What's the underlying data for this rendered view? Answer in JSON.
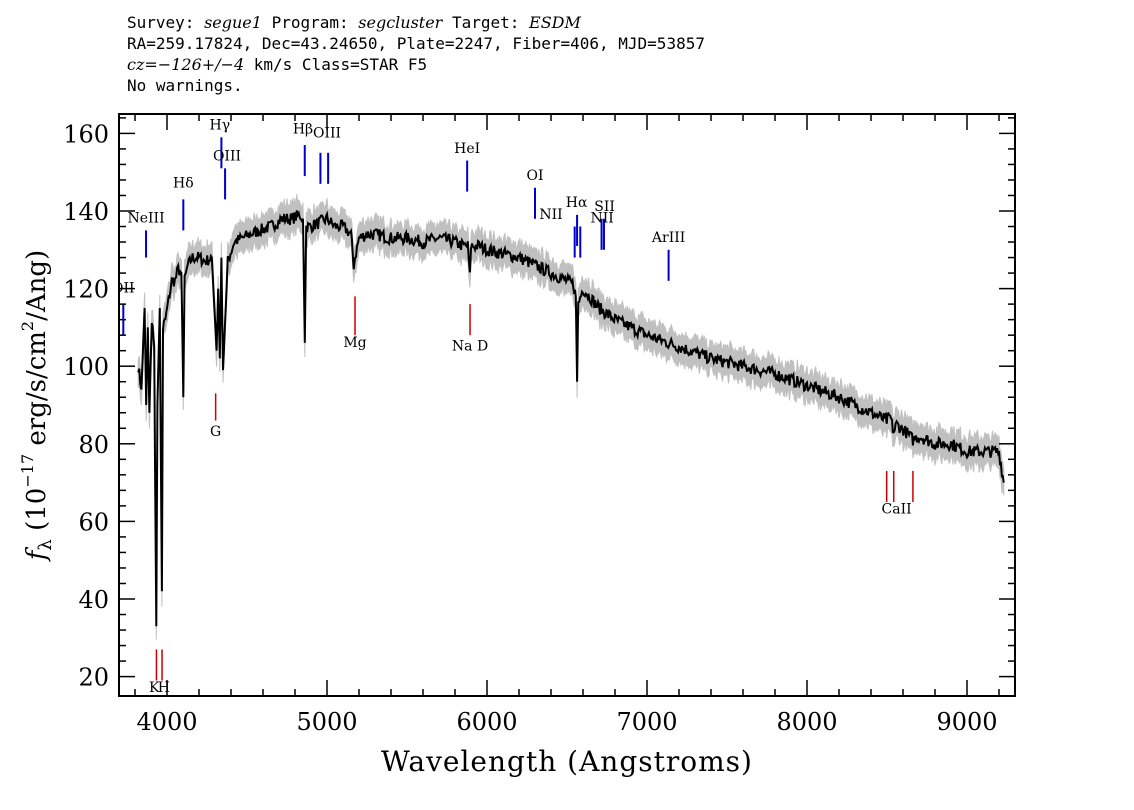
{
  "header": {
    "line1": [
      {
        "text": "Survey: ",
        "italic": false
      },
      {
        "text": "segue1",
        "italic": true
      },
      {
        "text": " Program: ",
        "italic": false
      },
      {
        "text": "segcluster",
        "italic": true
      },
      {
        "text": " Target: ",
        "italic": false
      },
      {
        "text": "ESDM",
        "italic": true
      }
    ],
    "line2": "RA=259.17824, Dec=43.24650, Plate=2247, Fiber=406, MJD=53857",
    "line3": [
      {
        "text": "cz=",
        "italic": true
      },
      {
        "text": "−126+/−4",
        "italic": true
      },
      {
        "text": " km/s Class=STAR F5",
        "italic": false
      }
    ],
    "line4": "No warnings."
  },
  "chart_data": {
    "type": "line",
    "xlabel": "Wavelength (Angstroms)",
    "ylabel": "f_λ (10^-17 erg/s/cm^2/Ang)",
    "xlim": [
      3700,
      9300
    ],
    "ylim": [
      15,
      165
    ],
    "x_ticks": [
      4000,
      5000,
      6000,
      7000,
      8000,
      9000
    ],
    "y_ticks": [
      20,
      40,
      60,
      80,
      100,
      120,
      140,
      160
    ],
    "grid": false,
    "colors": {
      "flux": "#000000",
      "error_band": "#c0c0c0",
      "emission_line": "#0000cc",
      "absorption_line": "#cc0000"
    },
    "series": [
      {
        "role": "flux",
        "x": [
          3820,
          3840,
          3860,
          3870,
          3880,
          3890,
          3905,
          3920,
          3933,
          3940,
          3955,
          3968,
          3975,
          3990,
          4010,
          4030,
          4050,
          4070,
          4090,
          4102,
          4110,
          4130,
          4160,
          4200,
          4240,
          4280,
          4310,
          4320,
          4330,
          4340,
          4350,
          4380,
          4420,
          4470,
          4520,
          4580,
          4650,
          4720,
          4780,
          4830,
          4850,
          4861,
          4870,
          4900,
          4950,
          5000,
          5050,
          5100,
          5150,
          5167,
          5175,
          5200,
          5250,
          5300,
          5400,
          5500,
          5600,
          5700,
          5800,
          5850,
          5880,
          5893,
          5900,
          5950,
          6000,
          6100,
          6200,
          6300,
          6400,
          6500,
          6540,
          6555,
          6563,
          6570,
          6600,
          6700,
          6800,
          6900,
          7000,
          7200,
          7400,
          7600,
          7800,
          8000,
          8200,
          8400,
          8498,
          8520,
          8542,
          8560,
          8620,
          8662,
          8700,
          8800,
          8900,
          9000,
          9100,
          9200,
          9230
        ],
        "y": [
          100,
          94,
          115,
          90,
          110,
          88,
          112,
          105,
          33,
          90,
          115,
          42,
          110,
          112,
          117,
          122,
          122,
          125,
          124,
          92,
          122,
          126,
          128,
          128,
          127,
          128,
          104,
          120,
          102,
          128,
          99,
          127,
          132,
          133,
          134,
          135,
          136,
          138,
          138,
          139,
          138,
          106,
          136,
          136,
          137,
          138,
          136,
          136,
          134,
          126,
          128,
          133,
          134,
          134,
          133,
          133,
          132,
          133,
          132,
          131,
          131,
          123,
          131,
          131,
          130,
          129,
          128,
          126,
          124,
          122,
          121,
          118,
          96,
          116,
          120,
          115,
          112,
          110,
          108,
          105,
          102,
          100,
          98,
          95,
          92,
          88,
          86,
          87,
          83,
          85,
          83,
          81,
          82,
          80,
          80,
          78,
          78,
          78,
          70
        ]
      }
    ],
    "line_markers": {
      "emission": [
        {
          "label": "OII",
          "wavelength": 3727,
          "ymin": 108,
          "ymax": 116
        },
        {
          "label": "NeIII",
          "wavelength": 3869,
          "ymin": 128,
          "ymax": 135
        },
        {
          "label": "Hδ",
          "wavelength": 4102,
          "ymin": 135,
          "ymax": 143
        },
        {
          "label": "Hγ",
          "wavelength": 4340,
          "ymin": 151,
          "ymax": 159
        },
        {
          "label": "OIII",
          "wavelength": 4363,
          "ymin": 143,
          "ymax": 151
        },
        {
          "label": "Hβ",
          "wavelength": 4861,
          "ymin": 149,
          "ymax": 157
        },
        {
          "label": "OIII",
          "wavelength": 4959,
          "ymin": 147,
          "ymax": 155
        },
        {
          "label": "OIII",
          "wavelength": 5007,
          "ymin": 147,
          "ymax": 155
        },
        {
          "label": "HeI",
          "wavelength": 5876,
          "ymin": 145,
          "ymax": 153
        },
        {
          "label": "OI",
          "wavelength": 6300,
          "ymin": 138,
          "ymax": 146
        },
        {
          "label": "NII",
          "wavelength": 6548,
          "ymin": 128,
          "ymax": 136
        },
        {
          "label": "Hα",
          "wavelength": 6563,
          "ymin": 131,
          "ymax": 139
        },
        {
          "label": "NII",
          "wavelength": 6583,
          "ymin": 128,
          "ymax": 136
        },
        {
          "label": "SII",
          "wavelength": 6716,
          "ymin": 130,
          "ymax": 138
        },
        {
          "label": "SII",
          "wavelength": 6731,
          "ymin": 130,
          "ymax": 138
        },
        {
          "label": "ArIII",
          "wavelength": 7135,
          "ymin": 122,
          "ymax": 130
        }
      ],
      "absorption": [
        {
          "label": "K",
          "wavelength": 3934,
          "ymin": 19,
          "ymax": 27
        },
        {
          "label": "H",
          "wavelength": 3969,
          "ymin": 19,
          "ymax": 27
        },
        {
          "label": "G",
          "wavelength": 4304,
          "ymin": 86,
          "ymax": 93
        },
        {
          "label": "Mg",
          "wavelength": 5175,
          "ymin": 108,
          "ymax": 118
        },
        {
          "label": "Na D",
          "wavelength": 5894,
          "ymin": 108,
          "ymax": 116
        },
        {
          "label": "CaII",
          "wavelength": 8498,
          "ymin": 65,
          "ymax": 73
        },
        {
          "label": "CaII",
          "wavelength": 8542,
          "ymin": 65,
          "ymax": 73
        },
        {
          "label": "CaII",
          "wavelength": 8662,
          "ymin": 65,
          "ymax": 73
        }
      ],
      "labels": [
        {
          "text": "OII",
          "kind": "emission",
          "wavelength": 3727,
          "y": 119
        },
        {
          "text": "NeIII",
          "kind": "emission",
          "wavelength": 3869,
          "y": 137
        },
        {
          "text": "Hδ",
          "kind": "emission",
          "wavelength": 4102,
          "y": 146
        },
        {
          "text": "Hγ",
          "kind": "emission",
          "wavelength": 4330,
          "y": 161
        },
        {
          "text": "OIII",
          "kind": "emission",
          "wavelength": 4375,
          "y": 153
        },
        {
          "text": "Hβ",
          "kind": "emission",
          "wavelength": 4850,
          "y": 160
        },
        {
          "text": "OIII",
          "kind": "emission",
          "wavelength": 5000,
          "y": 159
        },
        {
          "text": "HeI",
          "kind": "emission",
          "wavelength": 5876,
          "y": 155
        },
        {
          "text": "OI",
          "kind": "emission",
          "wavelength": 6300,
          "y": 148
        },
        {
          "text": "NII",
          "kind": "emission",
          "wavelength": 6400,
          "y": 138
        },
        {
          "text": "Hα",
          "kind": "emission",
          "wavelength": 6560,
          "y": 141
        },
        {
          "text": "SII",
          "kind": "emission",
          "wavelength": 6735,
          "y": 140
        },
        {
          "text": "NII",
          "kind": "emission",
          "wavelength": 6720,
          "y": 137
        },
        {
          "text": "ArIII",
          "kind": "emission",
          "wavelength": 7135,
          "y": 132
        },
        {
          "text": "K",
          "kind": "absorption",
          "wavelength": 3920,
          "y": 16
        },
        {
          "text": "H",
          "kind": "absorption",
          "wavelength": 3980,
          "y": 16
        },
        {
          "text": "G",
          "kind": "absorption",
          "wavelength": 4304,
          "y": 82
        },
        {
          "text": "Mg",
          "kind": "absorption",
          "wavelength": 5175,
          "y": 105
        },
        {
          "text": "Na D",
          "kind": "absorption",
          "wavelength": 5894,
          "y": 104
        },
        {
          "text": "CaII",
          "kind": "absorption",
          "wavelength": 8560,
          "y": 62
        }
      ]
    }
  }
}
